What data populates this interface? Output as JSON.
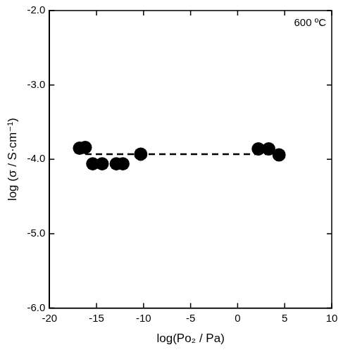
{
  "chart_data": {
    "type": "scatter",
    "x_label": "log(Po₂ / Pa)",
    "y_label": "log (σ / S·cm⁻¹)",
    "annotation": "600 ºC",
    "xlim": [
      -20,
      10
    ],
    "xticks": [
      -20,
      -15,
      -10,
      -5,
      0,
      5,
      10
    ],
    "ylim": [
      -6,
      -2
    ],
    "yticks": [
      {
        "value": -6,
        "label": "-6.0"
      },
      {
        "value": -5,
        "label": "-5.0"
      },
      {
        "value": -4,
        "label": "-4.0"
      },
      {
        "value": -3,
        "label": "-3.0"
      },
      {
        "value": -2,
        "label": "-2.0"
      }
    ],
    "grid": false,
    "series": [
      {
        "type": "scatter",
        "marker": "circle",
        "color": "#000000",
        "x": [
          -16.8,
          -16.2,
          -15.4,
          -14.4,
          -12.9,
          -12.2,
          -10.3,
          2.2,
          3.3,
          4.4
        ],
        "values": [
          -3.85,
          -3.84,
          -4.06,
          -4.06,
          -4.06,
          -4.06,
          -3.93,
          -3.86,
          -3.86,
          -3.94
        ]
      },
      {
        "type": "line",
        "line_style": "dashed",
        "color": "#000000",
        "x": [
          -16.2,
          4.4
        ],
        "values": [
          -3.93,
          -3.93
        ]
      }
    ]
  }
}
